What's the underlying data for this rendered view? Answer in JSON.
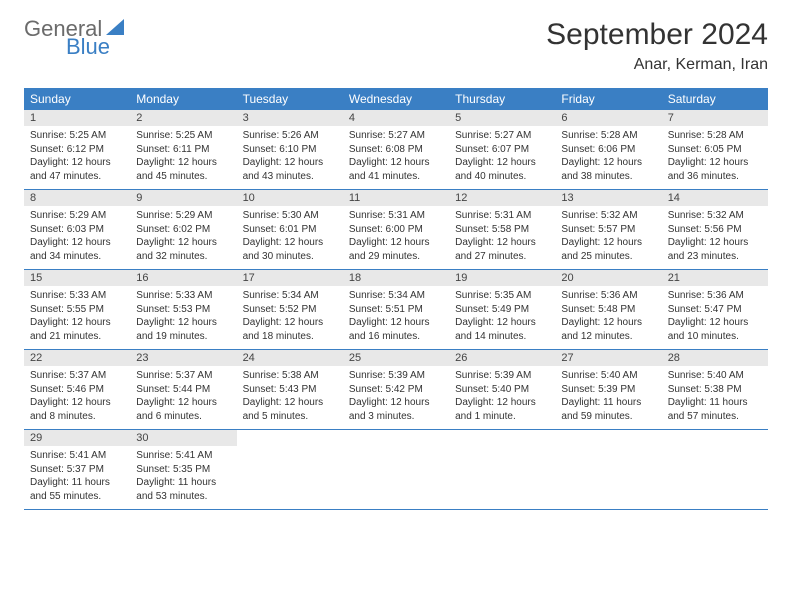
{
  "logo": {
    "line1": "General",
    "line2": "Blue"
  },
  "title": "September 2024",
  "location": "Anar, Kerman, Iran",
  "header_bg": "#3a7fc4",
  "header_fg": "#ffffff",
  "daynum_bg": "#e8e8e8",
  "border_color": "#3a7fc4",
  "weekdays": [
    "Sunday",
    "Monday",
    "Tuesday",
    "Wednesday",
    "Thursday",
    "Friday",
    "Saturday"
  ],
  "weeks": [
    [
      {
        "n": "1",
        "sunrise": "5:25 AM",
        "sunset": "6:12 PM",
        "daylight": "12 hours and 47 minutes."
      },
      {
        "n": "2",
        "sunrise": "5:25 AM",
        "sunset": "6:11 PM",
        "daylight": "12 hours and 45 minutes."
      },
      {
        "n": "3",
        "sunrise": "5:26 AM",
        "sunset": "6:10 PM",
        "daylight": "12 hours and 43 minutes."
      },
      {
        "n": "4",
        "sunrise": "5:27 AM",
        "sunset": "6:08 PM",
        "daylight": "12 hours and 41 minutes."
      },
      {
        "n": "5",
        "sunrise": "5:27 AM",
        "sunset": "6:07 PM",
        "daylight": "12 hours and 40 minutes."
      },
      {
        "n": "6",
        "sunrise": "5:28 AM",
        "sunset": "6:06 PM",
        "daylight": "12 hours and 38 minutes."
      },
      {
        "n": "7",
        "sunrise": "5:28 AM",
        "sunset": "6:05 PM",
        "daylight": "12 hours and 36 minutes."
      }
    ],
    [
      {
        "n": "8",
        "sunrise": "5:29 AM",
        "sunset": "6:03 PM",
        "daylight": "12 hours and 34 minutes."
      },
      {
        "n": "9",
        "sunrise": "5:29 AM",
        "sunset": "6:02 PM",
        "daylight": "12 hours and 32 minutes."
      },
      {
        "n": "10",
        "sunrise": "5:30 AM",
        "sunset": "6:01 PM",
        "daylight": "12 hours and 30 minutes."
      },
      {
        "n": "11",
        "sunrise": "5:31 AM",
        "sunset": "6:00 PM",
        "daylight": "12 hours and 29 minutes."
      },
      {
        "n": "12",
        "sunrise": "5:31 AM",
        "sunset": "5:58 PM",
        "daylight": "12 hours and 27 minutes."
      },
      {
        "n": "13",
        "sunrise": "5:32 AM",
        "sunset": "5:57 PM",
        "daylight": "12 hours and 25 minutes."
      },
      {
        "n": "14",
        "sunrise": "5:32 AM",
        "sunset": "5:56 PM",
        "daylight": "12 hours and 23 minutes."
      }
    ],
    [
      {
        "n": "15",
        "sunrise": "5:33 AM",
        "sunset": "5:55 PM",
        "daylight": "12 hours and 21 minutes."
      },
      {
        "n": "16",
        "sunrise": "5:33 AM",
        "sunset": "5:53 PM",
        "daylight": "12 hours and 19 minutes."
      },
      {
        "n": "17",
        "sunrise": "5:34 AM",
        "sunset": "5:52 PM",
        "daylight": "12 hours and 18 minutes."
      },
      {
        "n": "18",
        "sunrise": "5:34 AM",
        "sunset": "5:51 PM",
        "daylight": "12 hours and 16 minutes."
      },
      {
        "n": "19",
        "sunrise": "5:35 AM",
        "sunset": "5:49 PM",
        "daylight": "12 hours and 14 minutes."
      },
      {
        "n": "20",
        "sunrise": "5:36 AM",
        "sunset": "5:48 PM",
        "daylight": "12 hours and 12 minutes."
      },
      {
        "n": "21",
        "sunrise": "5:36 AM",
        "sunset": "5:47 PM",
        "daylight": "12 hours and 10 minutes."
      }
    ],
    [
      {
        "n": "22",
        "sunrise": "5:37 AM",
        "sunset": "5:46 PM",
        "daylight": "12 hours and 8 minutes."
      },
      {
        "n": "23",
        "sunrise": "5:37 AM",
        "sunset": "5:44 PM",
        "daylight": "12 hours and 6 minutes."
      },
      {
        "n": "24",
        "sunrise": "5:38 AM",
        "sunset": "5:43 PM",
        "daylight": "12 hours and 5 minutes."
      },
      {
        "n": "25",
        "sunrise": "5:39 AM",
        "sunset": "5:42 PM",
        "daylight": "12 hours and 3 minutes."
      },
      {
        "n": "26",
        "sunrise": "5:39 AM",
        "sunset": "5:40 PM",
        "daylight": "12 hours and 1 minute."
      },
      {
        "n": "27",
        "sunrise": "5:40 AM",
        "sunset": "5:39 PM",
        "daylight": "11 hours and 59 minutes."
      },
      {
        "n": "28",
        "sunrise": "5:40 AM",
        "sunset": "5:38 PM",
        "daylight": "11 hours and 57 minutes."
      }
    ],
    [
      {
        "n": "29",
        "sunrise": "5:41 AM",
        "sunset": "5:37 PM",
        "daylight": "11 hours and 55 minutes."
      },
      {
        "n": "30",
        "sunrise": "5:41 AM",
        "sunset": "5:35 PM",
        "daylight": "11 hours and 53 minutes."
      },
      null,
      null,
      null,
      null,
      null
    ]
  ]
}
